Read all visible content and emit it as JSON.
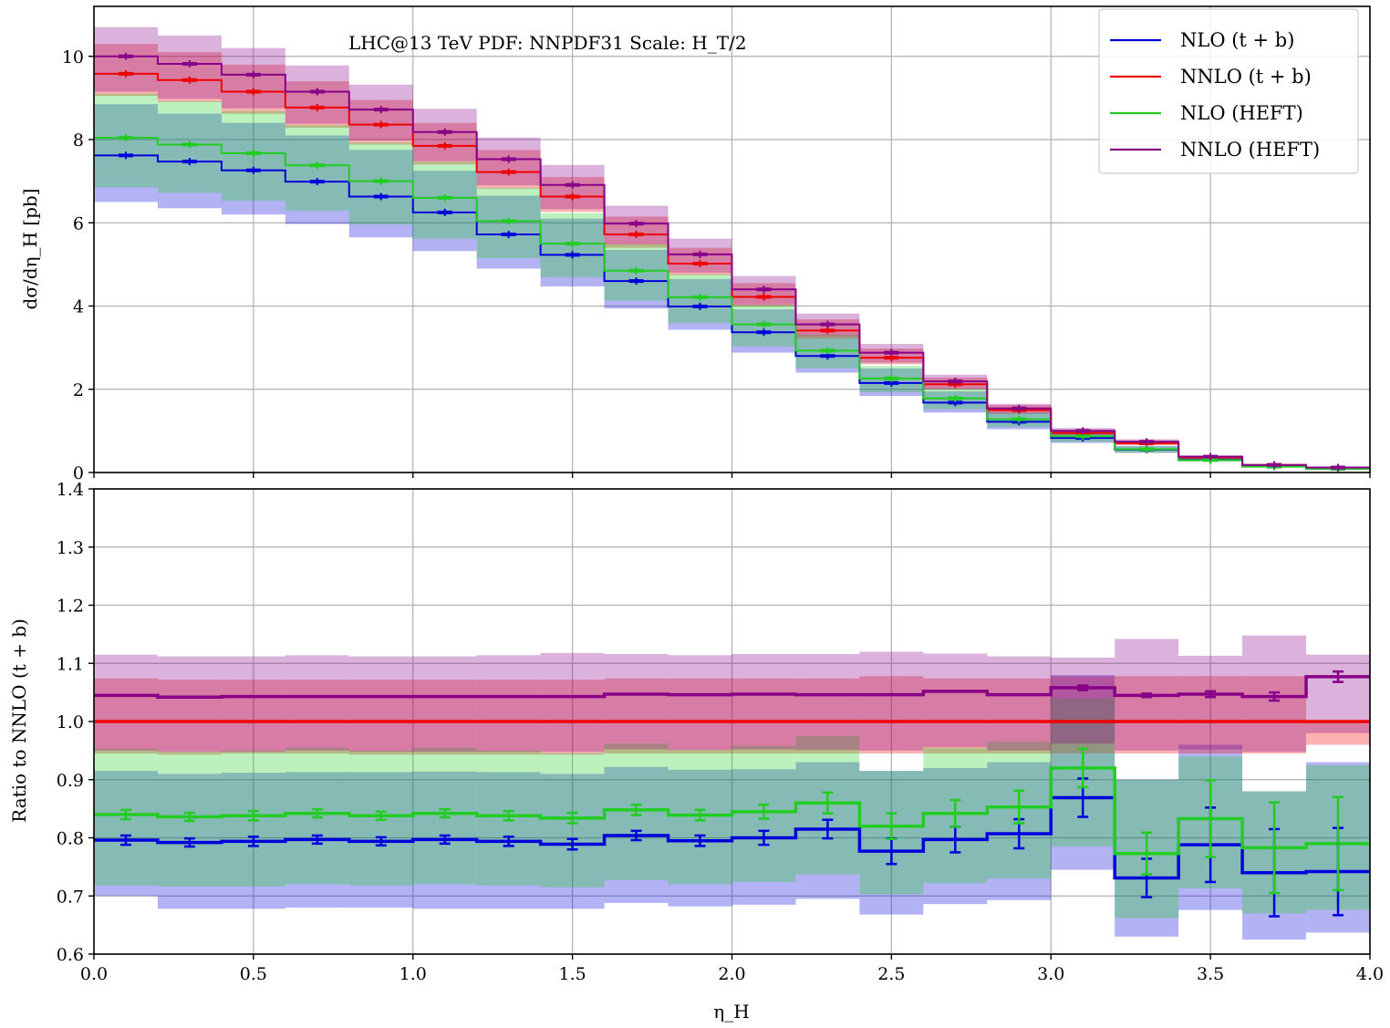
{
  "chart_data": [
    {
      "type": "line",
      "subtype": "step-histogram",
      "annotation": "LHC@13 TeV PDF: NNPDF31 Scale: H_T/2",
      "xlabel": "η_H",
      "ylabel": "dσ/dη_H [pb]",
      "xlim": [
        0,
        4.0
      ],
      "ylim": [
        0,
        11.2
      ],
      "x_ticks": [
        "0.0",
        "0.5",
        "1.0",
        "1.5",
        "2.0",
        "2.5",
        "3.0",
        "3.5",
        "4.0"
      ],
      "y_ticks": [
        "0",
        "2",
        "4",
        "6",
        "8",
        "10"
      ],
      "grid": true,
      "legend_position": "top-right",
      "bin_edges": [
        0,
        0.2,
        0.4,
        0.6,
        0.8,
        1.0,
        1.2,
        1.4,
        1.6,
        1.8,
        2.0,
        2.2,
        2.4,
        2.6,
        2.8,
        3.0,
        3.2,
        3.4,
        3.6,
        3.8,
        4.0
      ],
      "series": [
        {
          "name": "NLO (t + b)",
          "color": "#0000dd",
          "values": [
            7.62,
            7.47,
            7.26,
            6.99,
            6.63,
            6.25,
            5.72,
            5.23,
            4.6,
            3.99,
            3.37,
            2.8,
            2.15,
            1.68,
            1.22,
            0.83,
            0.55,
            0.31,
            0.15,
            0.09
          ],
          "band_low": [
            6.5,
            6.35,
            6.2,
            5.97,
            5.65,
            5.32,
            4.9,
            4.47,
            3.94,
            3.43,
            2.88,
            2.4,
            1.84,
            1.44,
            1.04,
            0.71,
            0.47,
            0.27,
            0.13,
            0.08
          ],
          "band_high": [
            8.85,
            8.62,
            8.4,
            8.1,
            7.75,
            7.25,
            6.65,
            6.1,
            5.35,
            4.65,
            3.92,
            3.25,
            2.5,
            1.95,
            1.42,
            0.97,
            0.64,
            0.36,
            0.18,
            0.11
          ]
        },
        {
          "name": "NNLO (t + b)",
          "color": "#ee0000",
          "values": [
            9.58,
            9.43,
            9.15,
            8.77,
            8.36,
            7.85,
            7.22,
            6.63,
            5.72,
            5.02,
            4.22,
            3.41,
            2.76,
            2.12,
            1.5,
            0.95,
            0.7,
            0.36,
            0.18,
            0.11
          ],
          "band_low": [
            9.05,
            8.9,
            8.62,
            8.28,
            7.88,
            7.4,
            6.82,
            6.26,
            5.4,
            4.74,
            3.99,
            3.22,
            2.6,
            2.0,
            1.42,
            0.9,
            0.66,
            0.34,
            0.17,
            0.1
          ],
          "band_high": [
            10.3,
            10.1,
            9.8,
            9.4,
            8.95,
            8.4,
            7.75,
            7.1,
            6.15,
            5.4,
            4.55,
            3.68,
            2.98,
            2.28,
            1.62,
            1.03,
            0.76,
            0.39,
            0.2,
            0.12
          ]
        },
        {
          "name": "NLO (HEFT)",
          "color": "#22cc22",
          "values": [
            8.04,
            7.88,
            7.67,
            7.38,
            7.0,
            6.6,
            6.04,
            5.5,
            4.85,
            4.21,
            3.56,
            2.93,
            2.26,
            1.78,
            1.28,
            0.87,
            0.56,
            0.3,
            0.14,
            0.09
          ],
          "band_low": [
            6.85,
            6.72,
            6.53,
            6.29,
            5.96,
            5.62,
            5.15,
            4.69,
            4.13,
            3.59,
            3.03,
            2.5,
            1.93,
            1.52,
            1.09,
            0.74,
            0.48,
            0.26,
            0.12,
            0.08
          ],
          "band_high": [
            9.1,
            8.92,
            8.68,
            8.35,
            7.93,
            7.47,
            6.84,
            6.23,
            5.49,
            4.77,
            4.03,
            3.32,
            2.56,
            2.02,
            1.45,
            0.99,
            0.63,
            0.34,
            0.16,
            0.1
          ]
        },
        {
          "name": "NNLO (HEFT)",
          "color": "#880088",
          "values": [
            10.0,
            9.82,
            9.56,
            9.15,
            8.72,
            8.18,
            7.53,
            6.91,
            5.98,
            5.24,
            4.4,
            3.56,
            2.88,
            2.19,
            1.54,
            1.0,
            0.74,
            0.38,
            0.18,
            0.12
          ],
          "band_low": [
            9.15,
            8.98,
            8.75,
            8.38,
            7.98,
            7.48,
            6.9,
            6.33,
            5.48,
            4.8,
            4.03,
            3.26,
            2.64,
            2.0,
            1.41,
            0.91,
            0.68,
            0.35,
            0.17,
            0.11
          ],
          "band_high": [
            10.7,
            10.5,
            10.2,
            9.78,
            9.32,
            8.74,
            8.05,
            7.39,
            6.41,
            5.62,
            4.72,
            3.82,
            3.09,
            2.35,
            1.65,
            1.07,
            0.8,
            0.41,
            0.2,
            0.13
          ]
        }
      ]
    },
    {
      "type": "line",
      "subtype": "step-histogram",
      "xlabel": "η_H",
      "ylabel": "Ratio to NNLO (t + b)",
      "xlim": [
        0,
        4.0
      ],
      "ylim": [
        0.6,
        1.4
      ],
      "x_ticks": [
        "0.0",
        "0.5",
        "1.0",
        "1.5",
        "2.0",
        "2.5",
        "3.0",
        "3.5",
        "4.0"
      ],
      "y_ticks": [
        "0.6",
        "0.7",
        "0.8",
        "0.9",
        "1.0",
        "1.1",
        "1.2",
        "1.3",
        "1.4"
      ],
      "grid": true,
      "bin_edges": [
        0,
        0.2,
        0.4,
        0.6,
        0.8,
        1.0,
        1.2,
        1.4,
        1.6,
        1.8,
        2.0,
        2.2,
        2.4,
        2.6,
        2.8,
        3.0,
        3.2,
        3.4,
        3.6,
        3.8,
        4.0
      ],
      "series": [
        {
          "name": "NLO (t + b)",
          "color": "#0000dd",
          "values": [
            0.796,
            0.792,
            0.794,
            0.797,
            0.794,
            0.797,
            0.794,
            0.789,
            0.804,
            0.795,
            0.8,
            0.815,
            0.777,
            0.797,
            0.807,
            0.869,
            0.731,
            0.788,
            0.74,
            0.742
          ],
          "errors": [
            0.008,
            0.007,
            0.008,
            0.007,
            0.007,
            0.007,
            0.008,
            0.009,
            0.008,
            0.009,
            0.012,
            0.016,
            0.022,
            0.022,
            0.025,
            0.033,
            0.033,
            0.064,
            0.075,
            0.075
          ],
          "band_low": [
            0.7,
            0.678,
            0.678,
            0.68,
            0.68,
            0.678,
            0.678,
            0.678,
            0.688,
            0.682,
            0.685,
            0.695,
            0.668,
            0.686,
            0.693,
            0.745,
            0.63,
            0.676,
            0.625,
            0.637
          ],
          "band_high": [
            0.915,
            0.91,
            0.912,
            0.913,
            0.913,
            0.914,
            0.913,
            0.91,
            0.922,
            0.917,
            0.918,
            0.93,
            0.915,
            0.92,
            0.93,
            1.08,
            0.9,
            0.96,
            0.88,
            0.93
          ]
        },
        {
          "name": "NNLO (t + b)",
          "color": "#ee0000",
          "values": [
            1.0,
            1.0,
            1.0,
            1.0,
            1.0,
            1.0,
            1.0,
            1.0,
            1.0,
            1.0,
            1.0,
            1.0,
            1.0,
            1.0,
            1.0,
            1.0,
            1.0,
            1.0,
            1.0,
            1.0
          ],
          "errors": [
            0,
            0,
            0,
            0,
            0,
            0,
            0,
            0,
            0,
            0,
            0,
            0,
            0,
            0,
            0,
            0,
            0,
            0,
            0,
            0
          ],
          "band_low": [
            0.945,
            0.943,
            0.945,
            0.945,
            0.943,
            0.943,
            0.943,
            0.943,
            0.945,
            0.945,
            0.945,
            0.945,
            0.945,
            0.945,
            0.945,
            0.945,
            0.945,
            0.945,
            0.945,
            0.96
          ],
          "band_high": [
            1.074,
            1.072,
            1.072,
            1.072,
            1.072,
            1.072,
            1.072,
            1.072,
            1.074,
            1.074,
            1.074,
            1.074,
            1.078,
            1.074,
            1.074,
            1.078,
            1.078,
            1.078,
            1.078,
            1.0
          ]
        },
        {
          "name": "NLO (HEFT)",
          "color": "#22cc22",
          "values": [
            0.84,
            0.836,
            0.838,
            0.842,
            0.838,
            0.842,
            0.838,
            0.834,
            0.848,
            0.839,
            0.845,
            0.86,
            0.82,
            0.842,
            0.853,
            0.92,
            0.773,
            0.833,
            0.783,
            0.79
          ],
          "errors": [
            0.008,
            0.007,
            0.008,
            0.007,
            0.007,
            0.007,
            0.008,
            0.009,
            0.009,
            0.009,
            0.012,
            0.018,
            0.022,
            0.023,
            0.028,
            0.033,
            0.036,
            0.066,
            0.078,
            0.08
          ],
          "band_low": [
            0.718,
            0.716,
            0.716,
            0.72,
            0.718,
            0.72,
            0.718,
            0.715,
            0.727,
            0.72,
            0.724,
            0.737,
            0.703,
            0.722,
            0.73,
            0.785,
            0.662,
            0.713,
            0.67,
            0.676
          ],
          "band_high": [
            0.953,
            0.948,
            0.95,
            0.955,
            0.95,
            0.955,
            0.95,
            0.946,
            0.962,
            0.951,
            0.958,
            0.975,
            0.915,
            0.955,
            0.965,
            1.04,
            0.9,
            0.94,
            0.88,
            0.925
          ]
        },
        {
          "name": "NNLO (HEFT)",
          "color": "#880088",
          "values": [
            1.045,
            1.042,
            1.043,
            1.043,
            1.043,
            1.043,
            1.043,
            1.043,
            1.047,
            1.046,
            1.047,
            1.046,
            1.046,
            1.052,
            1.046,
            1.058,
            1.045,
            1.047,
            1.043,
            1.077
          ],
          "errors": [
            0,
            0,
            0,
            0,
            0,
            0,
            0,
            0,
            0,
            0,
            0,
            0,
            0,
            0,
            0,
            0.004,
            0.003,
            0.005,
            0.007,
            0.009
          ],
          "band_low": [
            0.95,
            0.948,
            0.948,
            0.95,
            0.948,
            0.948,
            0.948,
            0.948,
            0.952,
            0.951,
            0.952,
            0.951,
            0.95,
            0.956,
            0.95,
            0.962,
            0.95,
            0.952,
            0.948,
            0.98
          ],
          "band_high": [
            1.115,
            1.112,
            1.112,
            1.114,
            1.112,
            1.112,
            1.114,
            1.118,
            1.116,
            1.114,
            1.116,
            1.116,
            1.12,
            1.117,
            1.112,
            1.11,
            1.142,
            1.113,
            1.148,
            1.115
          ]
        }
      ]
    }
  ]
}
